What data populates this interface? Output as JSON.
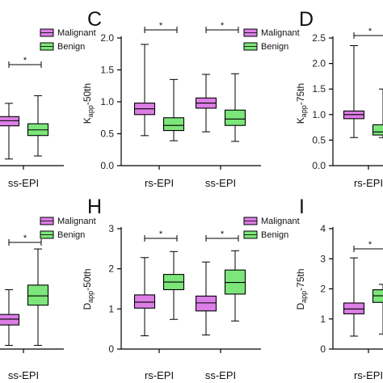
{
  "colors": {
    "malignant": "#dc7ee6",
    "benign": "#7ce67a",
    "axis": "#000000"
  },
  "legend_labels": [
    "Malignant",
    "Benign"
  ],
  "chart_data": [
    {
      "id": "left-top",
      "panel": "",
      "type": "box",
      "ylabel": "",
      "ylim": [
        0,
        2.5
      ],
      "yticks": [],
      "categories": [
        "ss-EPI"
      ],
      "legend": true,
      "series": [
        {
          "name": "Malignant",
          "color": "#dc7ee6",
          "boxes": [
            {
              "min": 0.13,
              "q1": 0.78,
              "median": 0.88,
              "q3": 0.96,
              "max": 1.22
            }
          ]
        },
        {
          "name": "Benign",
          "color": "#7ce67a",
          "boxes": [
            {
              "min": 0.19,
              "q1": 0.59,
              "median": 0.7,
              "q3": 0.82,
              "max": 1.37
            }
          ]
        }
      ],
      "significance": [
        {
          "category": 0,
          "label": "*"
        }
      ]
    },
    {
      "id": "C",
      "panel": "C",
      "type": "box",
      "ylabel_main": "K",
      "ylabel_sub": "app",
      "ylabel_rest": "-50th",
      "ylim": [
        0,
        2.0
      ],
      "yticks": [
        "0.0",
        "0.5",
        "1.0",
        "1.5",
        "2.0"
      ],
      "categories": [
        "rs-EPI",
        "ss-EPI"
      ],
      "legend": true,
      "series": [
        {
          "name": "Malignant",
          "color": "#dc7ee6",
          "boxes": [
            {
              "min": 0.47,
              "q1": 0.8,
              "median": 0.89,
              "q3": 0.98,
              "max": 1.9
            },
            {
              "min": 0.53,
              "q1": 0.9,
              "median": 0.98,
              "q3": 1.06,
              "max": 1.43
            }
          ]
        },
        {
          "name": "Benign",
          "color": "#7ce67a",
          "boxes": [
            {
              "min": 0.39,
              "q1": 0.55,
              "median": 0.63,
              "q3": 0.75,
              "max": 1.35
            },
            {
              "min": 0.38,
              "q1": 0.63,
              "median": 0.73,
              "q3": 0.87,
              "max": 1.44
            }
          ]
        }
      ],
      "significance": [
        {
          "category": 0,
          "label": "*"
        },
        {
          "category": 1,
          "label": "*"
        }
      ]
    },
    {
      "id": "D",
      "panel": "D",
      "type": "box",
      "ylabel_main": "K",
      "ylabel_sub": "app",
      "ylabel_rest": "-75th",
      "ylim": [
        0,
        2.5
      ],
      "yticks": [
        "0.0",
        "0.5",
        "1.0",
        "1.5",
        "2.0",
        "2.5"
      ],
      "categories": [
        "rs-EPI"
      ],
      "legend": false,
      "series": [
        {
          "name": "Malignant",
          "color": "#dc7ee6",
          "boxes": [
            {
              "min": 0.55,
              "q1": 0.92,
              "median": 1.0,
              "q3": 1.07,
              "max": 2.35
            }
          ]
        },
        {
          "name": "Benign",
          "color": "#7ce67a",
          "boxes": [
            {
              "min": 0.55,
              "q1": 0.6,
              "median": 0.66,
              "q3": 0.8,
              "max": 1.5
            }
          ]
        }
      ],
      "significance": [
        {
          "category": 0,
          "label": "*"
        }
      ]
    },
    {
      "id": "left-bottom",
      "panel": "",
      "type": "box",
      "ylabel": "",
      "ylim": [
        0,
        4
      ],
      "yticks": [],
      "categories": [
        "ss-EPI"
      ],
      "legend": true,
      "series": [
        {
          "name": "Malignant",
          "color": "#dc7ee6",
          "boxes": [
            {
              "min": 0.12,
              "q1": 0.78,
              "median": 0.97,
              "q3": 1.12,
              "max": 1.92
            }
          ]
        },
        {
          "name": "Benign",
          "color": "#7ce67a",
          "boxes": [
            {
              "min": 0.12,
              "q1": 1.42,
              "median": 1.72,
              "q3": 2.07,
              "max": 3.24
            }
          ]
        }
      ],
      "significance": [
        {
          "category": 0,
          "label": "*"
        }
      ]
    },
    {
      "id": "H",
      "panel": "H",
      "type": "box",
      "ylabel_main": "D",
      "ylabel_sub": "app",
      "ylabel_rest": "-50th",
      "ylim": [
        0,
        3
      ],
      "yticks": [
        "0",
        "1",
        "2",
        "3"
      ],
      "categories": [
        "rs-EPI",
        "ss-EPI"
      ],
      "legend": true,
      "series": [
        {
          "name": "Malignant",
          "color": "#dc7ee6",
          "boxes": [
            {
              "min": 0.33,
              "q1": 1.02,
              "median": 1.17,
              "q3": 1.35,
              "max": 2.28
            },
            {
              "min": 0.35,
              "q1": 0.95,
              "median": 1.15,
              "q3": 1.32,
              "max": 2.17
            }
          ]
        },
        {
          "name": "Benign",
          "color": "#7ce67a",
          "boxes": [
            {
              "min": 0.74,
              "q1": 1.48,
              "median": 1.67,
              "q3": 1.86,
              "max": 2.43
            },
            {
              "min": 0.7,
              "q1": 1.37,
              "median": 1.66,
              "q3": 1.97,
              "max": 2.45
            }
          ]
        }
      ],
      "significance": [
        {
          "category": 0,
          "label": "*"
        },
        {
          "category": 1,
          "label": "*"
        }
      ]
    },
    {
      "id": "I",
      "panel": "I",
      "type": "box",
      "ylabel_main": "D",
      "ylabel_sub": "app",
      "ylabel_rest": "-75th",
      "ylim": [
        0,
        4
      ],
      "yticks": [
        "0",
        "1",
        "2",
        "3",
        "4"
      ],
      "categories": [
        "rs-EPI"
      ],
      "legend": false,
      "series": [
        {
          "name": "Malignant",
          "color": "#dc7ee6",
          "boxes": [
            {
              "min": 0.43,
              "q1": 1.17,
              "median": 1.33,
              "q3": 1.53,
              "max": 3.03
            }
          ]
        },
        {
          "name": "Benign",
          "color": "#7ce67a",
          "boxes": [
            {
              "min": 0.5,
              "q1": 1.55,
              "median": 1.77,
              "q3": 1.97,
              "max": 2.15
            }
          ]
        }
      ],
      "significance": [
        {
          "category": 0,
          "label": "*"
        }
      ]
    }
  ]
}
